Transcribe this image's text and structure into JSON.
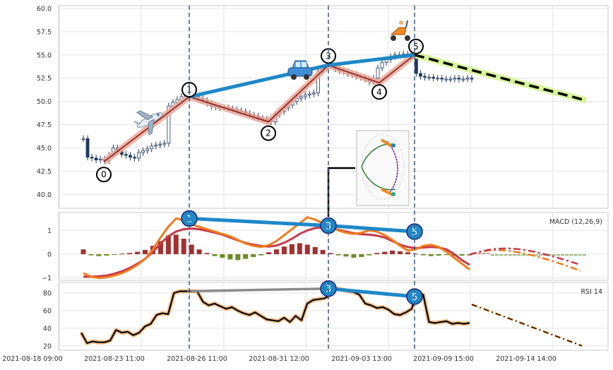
{
  "chart_data": [
    {
      "type": "candlestick",
      "panel": "price",
      "ylim": [
        38.5,
        60.3
      ],
      "yticks": [
        "60.0",
        "57.5",
        "55.0",
        "52.5",
        "50.0",
        "47.5",
        "45.0",
        "42.5",
        "40.0"
      ],
      "ytick_values": [
        60.0,
        57.5,
        55.0,
        52.5,
        50.0,
        47.5,
        45.0,
        42.5,
        40.0
      ],
      "grid": true,
      "closes": [
        46,
        44,
        43.9,
        43.7,
        43.8,
        43.6,
        44.2,
        45,
        44.6,
        44.3,
        44.2,
        44,
        43.9,
        44.5,
        44.7,
        44.9,
        45.2,
        45.3,
        45.4,
        45.5,
        49.5,
        49.9,
        50.2,
        50.5,
        50.6,
        50.7,
        50.5,
        50.3,
        50.1,
        49.8,
        49.5,
        49.4,
        49.3,
        49.3,
        49.2,
        49.1,
        49,
        48.9,
        48.7,
        48.5,
        48.4,
        48.2,
        48.1,
        47.9,
        47.8,
        48.6,
        48.9,
        49.3,
        49.6,
        50,
        50.3,
        50.5,
        50.7,
        50.8,
        50.9,
        53.2,
        53.6,
        53.9,
        53.8,
        53.5,
        53.3,
        53.2,
        53,
        52.9,
        52.7,
        52.6,
        52.4,
        52.1,
        52.5,
        53.6,
        54.2,
        54.5,
        54.8,
        55,
        55,
        55.1,
        55.1,
        55.2,
        53,
        52.7,
        52.6,
        52.6,
        52.5,
        52.5,
        52.4,
        52.4,
        52.4,
        52.5,
        52.4,
        52.4,
        52.5,
        52.4
      ],
      "pattern_points": [
        {
          "label": "0",
          "date": "2021-08-23",
          "value": 43.5
        },
        {
          "label": "1",
          "date": "2021-08-26",
          "value": 50.5
        },
        {
          "label": "2",
          "date": "2021-08-31",
          "value": 47.8
        },
        {
          "label": "3",
          "date": "2021-09-03",
          "value": 53.9
        },
        {
          "label": "4",
          "date": "2021-09-06",
          "value": 52.0
        },
        {
          "label": "5",
          "date": "2021-09-09",
          "value": 55.0
        }
      ],
      "forecast": {
        "from_value": 55.0,
        "to_value": 50.1
      },
      "pictograms": [
        "airplane-icon",
        "car-icon",
        "scooter-icon",
        "ellipse-inset"
      ]
    },
    {
      "type": "line+bar",
      "panel": "macd",
      "label": "MACD (12,26,9)",
      "ylim": [
        -1.1,
        1.75
      ],
      "yticks": [
        "1",
        "0",
        "−1"
      ],
      "ytick_values": [
        1,
        0,
        -1
      ],
      "macd": [
        -0.8,
        -0.95,
        -1,
        -0.97,
        -0.9,
        -0.8,
        -0.65,
        -0.45,
        -0.2,
        0.2,
        0.7,
        1.15,
        1.5,
        1.42,
        1.25,
        1.15,
        1.05,
        0.95,
        0.85,
        0.75,
        0.6,
        0.45,
        0.35,
        0.3,
        0.38,
        0.55,
        0.8,
        1.05,
        1.3,
        1.55,
        1.45,
        1.3,
        1.15,
        1,
        0.9,
        0.85,
        0.9,
        1,
        0.95,
        0.8,
        0.6,
        0.35,
        0.15,
        0.2,
        0.35,
        0.4,
        0.3,
        0.1,
        -0.15,
        -0.4,
        -0.65
      ],
      "signal": [
        -0.95,
        -0.95,
        -0.93,
        -0.9,
        -0.82,
        -0.72,
        -0.58,
        -0.4,
        -0.2,
        0.1,
        0.45,
        0.75,
        0.95,
        1.05,
        1.08,
        1.05,
        0.98,
        0.9,
        0.82,
        0.7,
        0.58,
        0.47,
        0.4,
        0.35,
        0.32,
        0.36,
        0.48,
        0.65,
        0.85,
        1.0,
        1.1,
        1.12,
        1.1,
        1.03,
        0.95,
        0.88,
        0.84,
        0.82,
        0.78,
        0.7,
        0.55,
        0.4,
        0.3,
        0.25,
        0.28,
        0.3,
        0.28,
        0.2,
        0.0,
        -0.25,
        -0.45
      ],
      "histogram": [
        0.2,
        -0.05,
        -0.08,
        -0.06,
        -0.03,
        0.02,
        0.05,
        0.1,
        0.18,
        0.35,
        0.55,
        0.78,
        0.82,
        0.65,
        0.4,
        0.2,
        0.05,
        -0.08,
        -0.15,
        -0.22,
        -0.25,
        -0.2,
        -0.12,
        -0.05,
        0.08,
        0.2,
        0.32,
        0.42,
        0.46,
        0.4,
        0.3,
        0.18,
        0.05,
        -0.05,
        -0.1,
        -0.15,
        -0.12,
        -0.05,
        0.05,
        0.1,
        0.15,
        0.12,
        0.08,
        0.02,
        -0.05,
        -0.08,
        -0.06,
        -0.04,
        -0.08,
        -0.06,
        -0.05
      ],
      "pattern_points": [
        {
          "label": "1",
          "value": 1.5
        },
        {
          "label": "3",
          "value": 1.2
        },
        {
          "label": "5",
          "value": 0.95
        }
      ]
    },
    {
      "type": "line",
      "panel": "rsi",
      "label": "RSI 14",
      "ylim": [
        15,
        92
      ],
      "yticks": [
        "80",
        "60",
        "40",
        "20"
      ],
      "ytick_values": [
        80,
        60,
        40,
        20
      ],
      "rsi": [
        35,
        23,
        25,
        24,
        24,
        26,
        38,
        35,
        36,
        32,
        35,
        42,
        45,
        55,
        57,
        56,
        80,
        82,
        82,
        82,
        82,
        70,
        66,
        68,
        65,
        62,
        64,
        60,
        57,
        55,
        58,
        54,
        50,
        49,
        48,
        52,
        47,
        54,
        49,
        68,
        72,
        73,
        74,
        78,
        85,
        84,
        82,
        81,
        78,
        68,
        66,
        63,
        64,
        61,
        56,
        55,
        58,
        62,
        82,
        78,
        47,
        46,
        47,
        48,
        45,
        46,
        45,
        46
      ],
      "forecast": {
        "from_value": 67,
        "to_value": 20
      },
      "pattern_points": [
        {
          "label": "3",
          "value": 85
        },
        {
          "label": "5",
          "value": 76
        }
      ]
    }
  ],
  "x_axis": {
    "tick_labels": [
      "2021-08-18 09:00",
      "2021-08-23 11:00",
      "2021-08-26 11:00",
      "2021-08-31 12:00",
      "2021-09-03 13:00",
      "2021-09-09 15:00",
      "2021-09-14 14:00"
    ]
  },
  "colors": {
    "candle": "#1f3a5f",
    "zigzag": "#e9a896",
    "zigzag_inner": "#8b1a1a",
    "trend": "#1e88c8",
    "forecast_glow": "#d6f59a",
    "macd": "#f07c1b",
    "signal": "#c8384a",
    "hist_pos": "#a33030",
    "hist_neg": "#6b8e23",
    "rsi": "#000000",
    "rsi_glow": "#f6c08a",
    "vline": "#3a5a80"
  }
}
